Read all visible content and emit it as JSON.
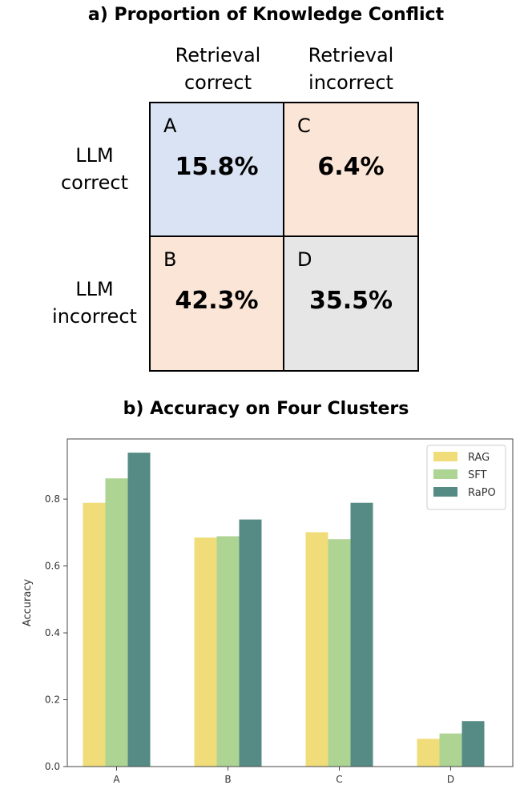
{
  "panel_a": {
    "title": "a) Proportion of Knowledge Conflict",
    "col_headers": [
      "Retrieval correct",
      "Retrieval incorrect"
    ],
    "col_headers_lines": [
      [
        "Retrieval",
        "correct"
      ],
      [
        "Retrieval",
        "incorrect"
      ]
    ],
    "row_headers_lines": [
      [
        "LLM",
        "correct"
      ],
      [
        "LLM",
        "incorrect"
      ]
    ],
    "cells": [
      {
        "label": "A",
        "value": "15.8%",
        "color": "#dae3f3"
      },
      {
        "label": "C",
        "value": "6.4%",
        "color": "#fbe5d6"
      },
      {
        "label": "B",
        "value": "42.3%",
        "color": "#fbe5d6"
      },
      {
        "label": "D",
        "value": "35.5%",
        "color": "#e7e6e6"
      }
    ]
  },
  "chart_data": {
    "type": "bar",
    "title": "b) Accuracy on Four Clusters",
    "xlabel": "",
    "ylabel": "Accuracy",
    "categories": [
      "A",
      "B",
      "C",
      "D"
    ],
    "ylim": [
      0,
      0.98
    ],
    "yticks": [
      "0.0",
      "0.2",
      "0.4",
      "0.6",
      "0.8"
    ],
    "grid": false,
    "legend_placement": "top-right",
    "series": [
      {
        "name": "RAG",
        "color": "#f0dc78",
        "values": [
          0.789,
          0.685,
          0.701,
          0.083
        ]
      },
      {
        "name": "SFT",
        "color": "#aed494",
        "values": [
          0.862,
          0.689,
          0.68,
          0.099
        ]
      },
      {
        "name": "RaPO",
        "color": "#558b84",
        "values": [
          0.939,
          0.739,
          0.789,
          0.136
        ]
      }
    ]
  }
}
